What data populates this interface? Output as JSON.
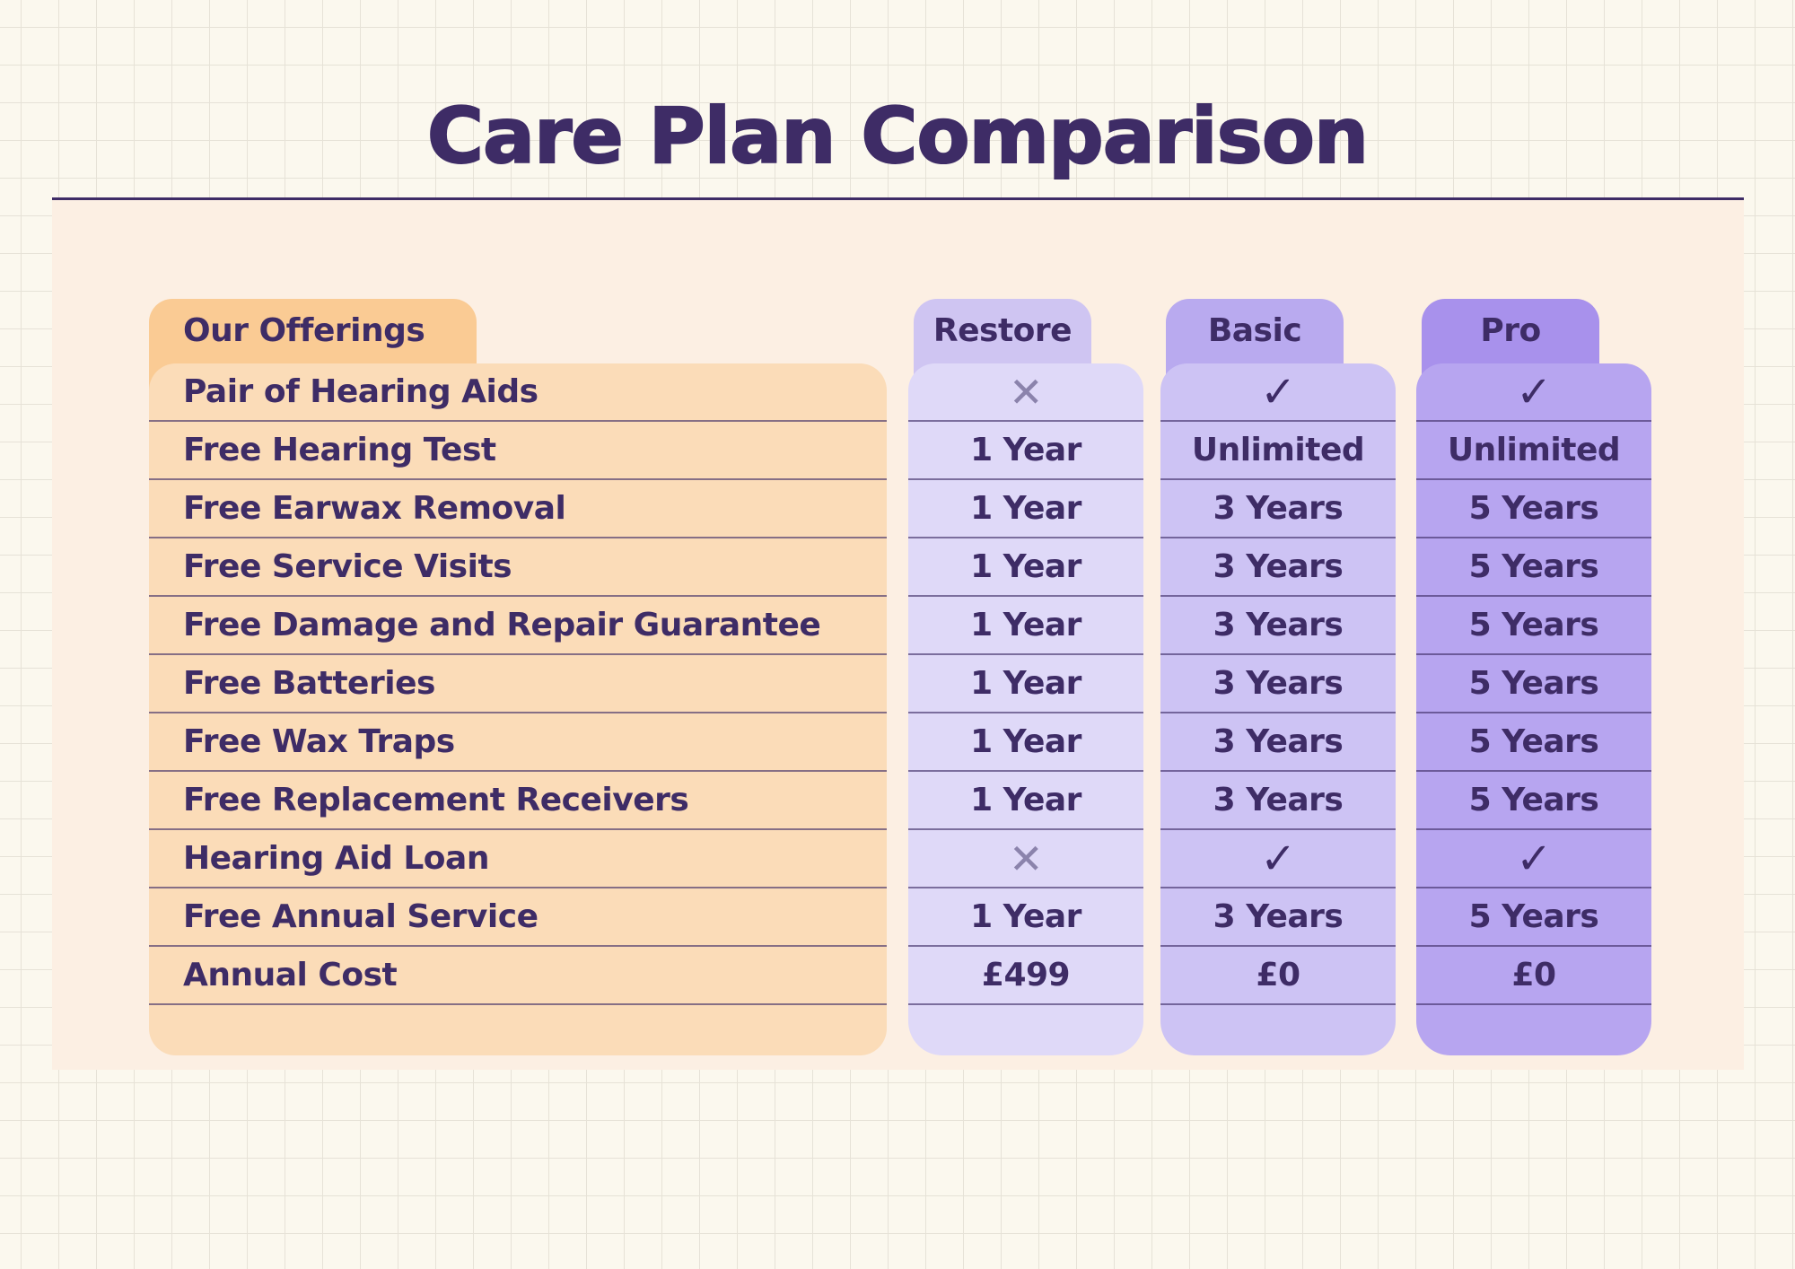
{
  "title": "Care Plan Comparison",
  "colors": {
    "page_background": "#FBF8EE",
    "grid_line": "#E6E2D7",
    "panel_background": "#FCEFE3",
    "divider_line": "#3E2C66",
    "title_text": "#3E2C66",
    "body_text": "#3E2C66",
    "offerings_tab": "#FACB94",
    "offerings_body": "#FBDCB8",
    "x_mark": "#8B83AC",
    "row_separator": "#4A3A66"
  },
  "table": {
    "offerings_header": "Our Offerings",
    "offerings": [
      "Pair of Hearing Aids",
      "Free Hearing Test",
      "Free Earwax Removal",
      "Free Service Visits",
      "Free Damage and Repair Guarantee",
      "Free Batteries",
      "Free Wax Traps",
      "Free Replacement Receivers",
      "Hearing Aid Loan",
      "Free Annual Service",
      "Annual Cost"
    ],
    "plans": [
      {
        "name": "Restore",
        "tab_color": "#CFC5F2",
        "body_color": "#DFD9F8",
        "values": [
          "✕",
          "1 Year",
          "1 Year",
          "1 Year",
          "1 Year",
          "1 Year",
          "1 Year",
          "1 Year",
          "✕",
          "1 Year",
          "£499"
        ]
      },
      {
        "name": "Basic",
        "tab_color": "#B9AAEF",
        "body_color": "#CDC3F4",
        "values": [
          "✓",
          "Unlimited",
          "3 Years",
          "3 Years",
          "3 Years",
          "3 Years",
          "3 Years",
          "3 Years",
          "✓",
          "3 Years",
          "£0"
        ]
      },
      {
        "name": "Pro",
        "tab_color": "#A891EC",
        "body_color": "#B7A5F0",
        "values": [
          "✓",
          "Unlimited",
          "5 Years",
          "5 Years",
          "5 Years",
          "5 Years",
          "5 Years",
          "5 Years",
          "✓",
          "5 Years",
          "£0"
        ]
      }
    ]
  },
  "chart_data": {
    "type": "table",
    "title": "Care Plan Comparison",
    "columns": [
      "Our Offerings",
      "Restore",
      "Basic",
      "Pro"
    ],
    "rows": [
      [
        "Pair of Hearing Aids",
        "✕",
        "✓",
        "✓"
      ],
      [
        "Free Hearing Test",
        "1 Year",
        "Unlimited",
        "Unlimited"
      ],
      [
        "Free Earwax Removal",
        "1 Year",
        "3 Years",
        "5 Years"
      ],
      [
        "Free Service Visits",
        "1 Year",
        "3 Years",
        "5 Years"
      ],
      [
        "Free Damage and Repair Guarantee",
        "1 Year",
        "3 Years",
        "5 Years"
      ],
      [
        "Free Batteries",
        "1 Year",
        "3 Years",
        "5 Years"
      ],
      [
        "Free Wax Traps",
        "1 Year",
        "3 Years",
        "5 Years"
      ],
      [
        "Free Replacement Receivers",
        "1 Year",
        "3 Years",
        "5 Years"
      ],
      [
        "Hearing Aid Loan",
        "✕",
        "✓",
        "✓"
      ],
      [
        "Free Annual Service",
        "1 Year",
        "3 Years",
        "5 Years"
      ],
      [
        "Annual Cost",
        "£499",
        "£0",
        "£0"
      ]
    ]
  }
}
